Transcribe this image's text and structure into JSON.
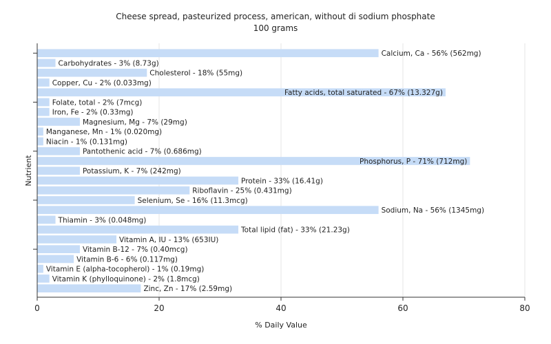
{
  "chart_data": {
    "type": "bar",
    "orientation": "horizontal",
    "title": "Cheese spread, pasteurized process, american, without di sodium phosphate",
    "subtitle": "100 grams",
    "xlabel": "% Daily Value",
    "ylabel": "Nutrient",
    "xlim": [
      0,
      80
    ],
    "xticks": [
      0,
      20,
      40,
      60,
      80
    ],
    "grid": true,
    "bar_color": "#c6dcf7",
    "bars": [
      {
        "name": "Calcium, Ca",
        "value": 56,
        "label": "Calcium, Ca - 56% (562mg)"
      },
      {
        "name": "Carbohydrates",
        "value": 3,
        "label": "Carbohydrates - 3% (8.73g)"
      },
      {
        "name": "Cholesterol",
        "value": 18,
        "label": "Cholesterol - 18% (55mg)"
      },
      {
        "name": "Copper, Cu",
        "value": 2,
        "label": "Copper, Cu - 2% (0.033mg)"
      },
      {
        "name": "Fatty acids, total saturated",
        "value": 67,
        "label": "Fatty acids, total saturated - 67% (13.327g)"
      },
      {
        "name": "Folate, total",
        "value": 2,
        "label": "Folate, total - 2% (7mcg)"
      },
      {
        "name": "Iron, Fe",
        "value": 2,
        "label": "Iron, Fe - 2% (0.33mg)"
      },
      {
        "name": "Magnesium, Mg",
        "value": 7,
        "label": "Magnesium, Mg - 7% (29mg)"
      },
      {
        "name": "Manganese, Mn",
        "value": 1,
        "label": "Manganese, Mn - 1% (0.020mg)"
      },
      {
        "name": "Niacin",
        "value": 1,
        "label": "Niacin - 1% (0.131mg)"
      },
      {
        "name": "Pantothenic acid",
        "value": 7,
        "label": "Pantothenic acid - 7% (0.686mg)"
      },
      {
        "name": "Phosphorus, P",
        "value": 71,
        "label": "Phosphorus, P - 71% (712mg)"
      },
      {
        "name": "Potassium, K",
        "value": 7,
        "label": "Potassium, K - 7% (242mg)"
      },
      {
        "name": "Protein",
        "value": 33,
        "label": "Protein - 33% (16.41g)"
      },
      {
        "name": "Riboflavin",
        "value": 25,
        "label": "Riboflavin - 25% (0.431mg)"
      },
      {
        "name": "Selenium, Se",
        "value": 16,
        "label": "Selenium, Se - 16% (11.3mcg)"
      },
      {
        "name": "Sodium, Na",
        "value": 56,
        "label": "Sodium, Na - 56% (1345mg)"
      },
      {
        "name": "Thiamin",
        "value": 3,
        "label": "Thiamin - 3% (0.048mg)"
      },
      {
        "name": "Total lipid (fat)",
        "value": 33,
        "label": "Total lipid (fat) - 33% (21.23g)"
      },
      {
        "name": "Vitamin A, IU",
        "value": 13,
        "label": "Vitamin A, IU - 13% (653IU)"
      },
      {
        "name": "Vitamin B-12",
        "value": 7,
        "label": "Vitamin B-12 - 7% (0.40mcg)"
      },
      {
        "name": "Vitamin B-6",
        "value": 6,
        "label": "Vitamin B-6 - 6% (0.117mg)"
      },
      {
        "name": "Vitamin E (alpha-tocopherol)",
        "value": 1,
        "label": "Vitamin E (alpha-tocopherol) - 1% (0.19mg)"
      },
      {
        "name": "Vitamin K (phylloquinone)",
        "value": 2,
        "label": "Vitamin K (phylloquinone) - 2% (1.8mcg)"
      },
      {
        "name": "Zinc, Zn",
        "value": 17,
        "label": "Zinc, Zn - 17% (2.59mg)"
      }
    ]
  }
}
